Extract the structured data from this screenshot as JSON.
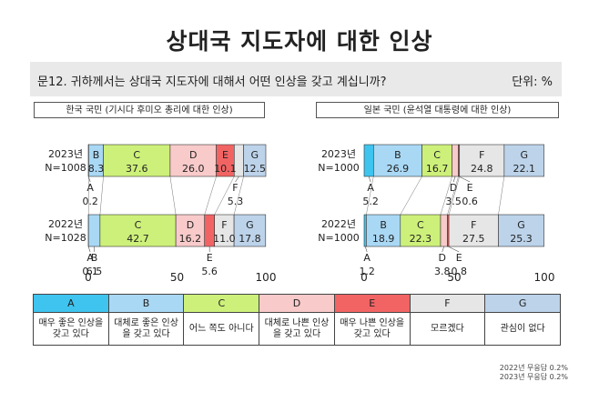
{
  "title": "상대국 지도자에 대한 인상",
  "question": "문12. 귀하께서는 상대국 지도자에 대해서 어떤 인상을 갖고 계십니까?",
  "unit": "단위: %",
  "colors": {
    "A": "#3ec4ef",
    "B": "#a9d8f5",
    "C": "#cdf07a",
    "D": "#f8caca",
    "E": "#f26464",
    "F": "#e6e6e6",
    "G": "#bcd3ea"
  },
  "legend": [
    {
      "key": "A",
      "label": "매우 좋은 인상을 갖고 있다"
    },
    {
      "key": "B",
      "label": "대체로 좋은 인상을 갖고 있다"
    },
    {
      "key": "C",
      "label": "어느 쪽도 아니다"
    },
    {
      "key": "D",
      "label": "대체로 나쁜 인상을 갖고 있다"
    },
    {
      "key": "E",
      "label": "매우 나쁜 인상을 갖고 있다"
    },
    {
      "key": "F",
      "label": "모르겠다"
    },
    {
      "key": "G",
      "label": "관심이 없다"
    }
  ],
  "notes": [
    "2022년 무응답 0.2%",
    "2023년 무응답 0.2%"
  ],
  "chart_data": [
    {
      "type": "bar",
      "title": "한국 국민 (기시다 후미오 총리에 대한 인상)",
      "categories": [
        "2023년\nN=1008",
        "2022년\nN=1028"
      ],
      "xlim": [
        0,
        100
      ],
      "xticks": [
        0,
        50,
        100
      ],
      "series": [
        {
          "name": "A",
          "values": [
            0.2,
            0.1
          ]
        },
        {
          "name": "B",
          "values": [
            8.3,
            6.5
          ]
        },
        {
          "name": "C",
          "values": [
            37.6,
            42.7
          ]
        },
        {
          "name": "D",
          "values": [
            26.0,
            16.2
          ]
        },
        {
          "name": "E",
          "values": [
            10.1,
            5.6
          ]
        },
        {
          "name": "F",
          "values": [
            5.3,
            11.0
          ]
        },
        {
          "name": "G",
          "values": [
            12.5,
            17.8
          ]
        }
      ]
    },
    {
      "type": "bar",
      "title": "일본 국민 (윤석열 대통령에 대한 인상)",
      "categories": [
        "2023년\nN=1000",
        "2022년\nN=1000"
      ],
      "xlim": [
        0,
        100
      ],
      "xticks": [
        0,
        50,
        100
      ],
      "series": [
        {
          "name": "A",
          "values": [
            5.2,
            1.2
          ]
        },
        {
          "name": "B",
          "values": [
            26.9,
            18.9
          ]
        },
        {
          "name": "C",
          "values": [
            16.7,
            22.3
          ]
        },
        {
          "name": "D",
          "values": [
            3.5,
            3.8
          ]
        },
        {
          "name": "E",
          "values": [
            0.6,
            0.8
          ]
        },
        {
          "name": "F",
          "values": [
            24.8,
            27.5
          ]
        },
        {
          "name": "G",
          "values": [
            22.1,
            25.3
          ]
        }
      ]
    }
  ]
}
